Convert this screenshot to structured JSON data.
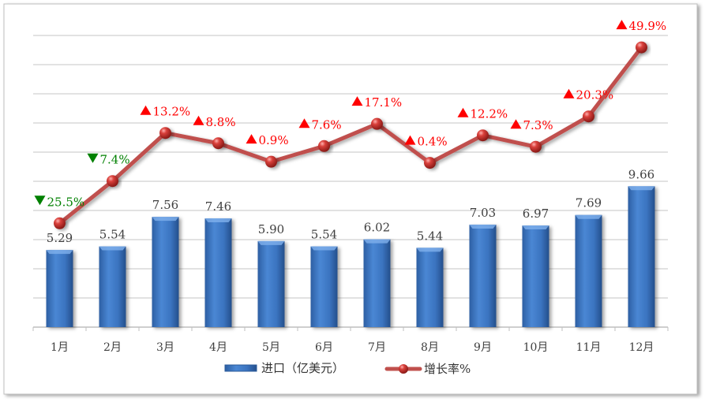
{
  "chart_data": {
    "type": "bar+line",
    "categories": [
      "1月",
      "2月",
      "3月",
      "4月",
      "5月",
      "6月",
      "7月",
      "8月",
      "9月",
      "10月",
      "11月",
      "12月"
    ],
    "series": [
      {
        "name": "进口（亿美元）",
        "type": "bar",
        "values": [
          5.29,
          5.54,
          7.56,
          7.46,
          5.9,
          5.54,
          6.02,
          5.44,
          7.03,
          6.97,
          7.69,
          9.66
        ],
        "labels": [
          "5.29",
          "5.54",
          "7.56",
          "7.46",
          "5.90",
          "5.54",
          "6.02",
          "5.44",
          "7.03",
          "6.97",
          "7.69",
          "9.66"
        ],
        "color": "#3a72bd"
      },
      {
        "name": "增长率%",
        "type": "line",
        "values": [
          -25.5,
          -7.4,
          13.2,
          8.8,
          0.9,
          7.6,
          17.1,
          0.4,
          12.2,
          7.3,
          20.3,
          49.9
        ],
        "labels": [
          "25.5%",
          "7.4%",
          "13.2%",
          "8.8%",
          "0.9%",
          "7.6%",
          "17.1%",
          "0.4%",
          "12.2%",
          "7.3%",
          "20.3%",
          "49.9%"
        ],
        "color": "#c0504d"
      }
    ],
    "ylim": [
      0,
      20
    ],
    "y2lim": [
      -70,
      55
    ],
    "y_axis_visible": false,
    "grid": true,
    "legend": "bottom",
    "up_color": "#ff0000",
    "down_color": "#008000"
  }
}
